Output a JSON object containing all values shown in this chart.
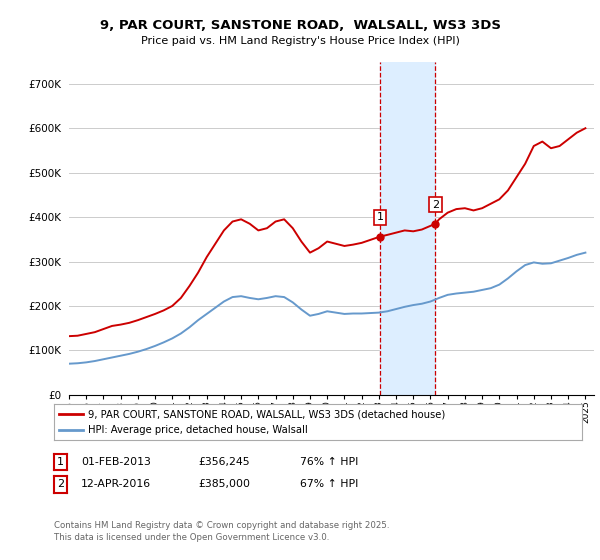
{
  "title_line1": "9, PAR COURT, SANSTONE ROAD,  WALSALL, WS3 3DS",
  "title_line2": "Price paid vs. HM Land Registry's House Price Index (HPI)",
  "ylim": [
    0,
    750000
  ],
  "yticks": [
    0,
    100000,
    200000,
    300000,
    400000,
    500000,
    600000,
    700000
  ],
  "ytick_labels": [
    "£0",
    "£100K",
    "£200K",
    "£300K",
    "£400K",
    "£500K",
    "£600K",
    "£700K"
  ],
  "bg_color": "#ffffff",
  "grid_color": "#cccccc",
  "sale1_date_num": 2013.08,
  "sale1_price": 356245,
  "sale1_date_str": "01-FEB-2013",
  "sale1_price_str": "£356,245",
  "sale1_hpi_str": "76% ↑ HPI",
  "sale2_date_num": 2016.28,
  "sale2_price": 385000,
  "sale2_date_str": "12-APR-2016",
  "sale2_price_str": "£385,000",
  "sale2_hpi_str": "67% ↑ HPI",
  "red_line_color": "#cc0000",
  "blue_line_color": "#6699cc",
  "shade_color": "#ddeeff",
  "legend_label_red": "9, PAR COURT, SANSTONE ROAD, WALSALL, WS3 3DS (detached house)",
  "legend_label_blue": "HPI: Average price, detached house, Walsall",
  "footnote_line1": "Contains HM Land Registry data © Crown copyright and database right 2025.",
  "footnote_line2": "This data is licensed under the Open Government Licence v3.0.",
  "xmin": 1995,
  "xmax": 2025.5
}
